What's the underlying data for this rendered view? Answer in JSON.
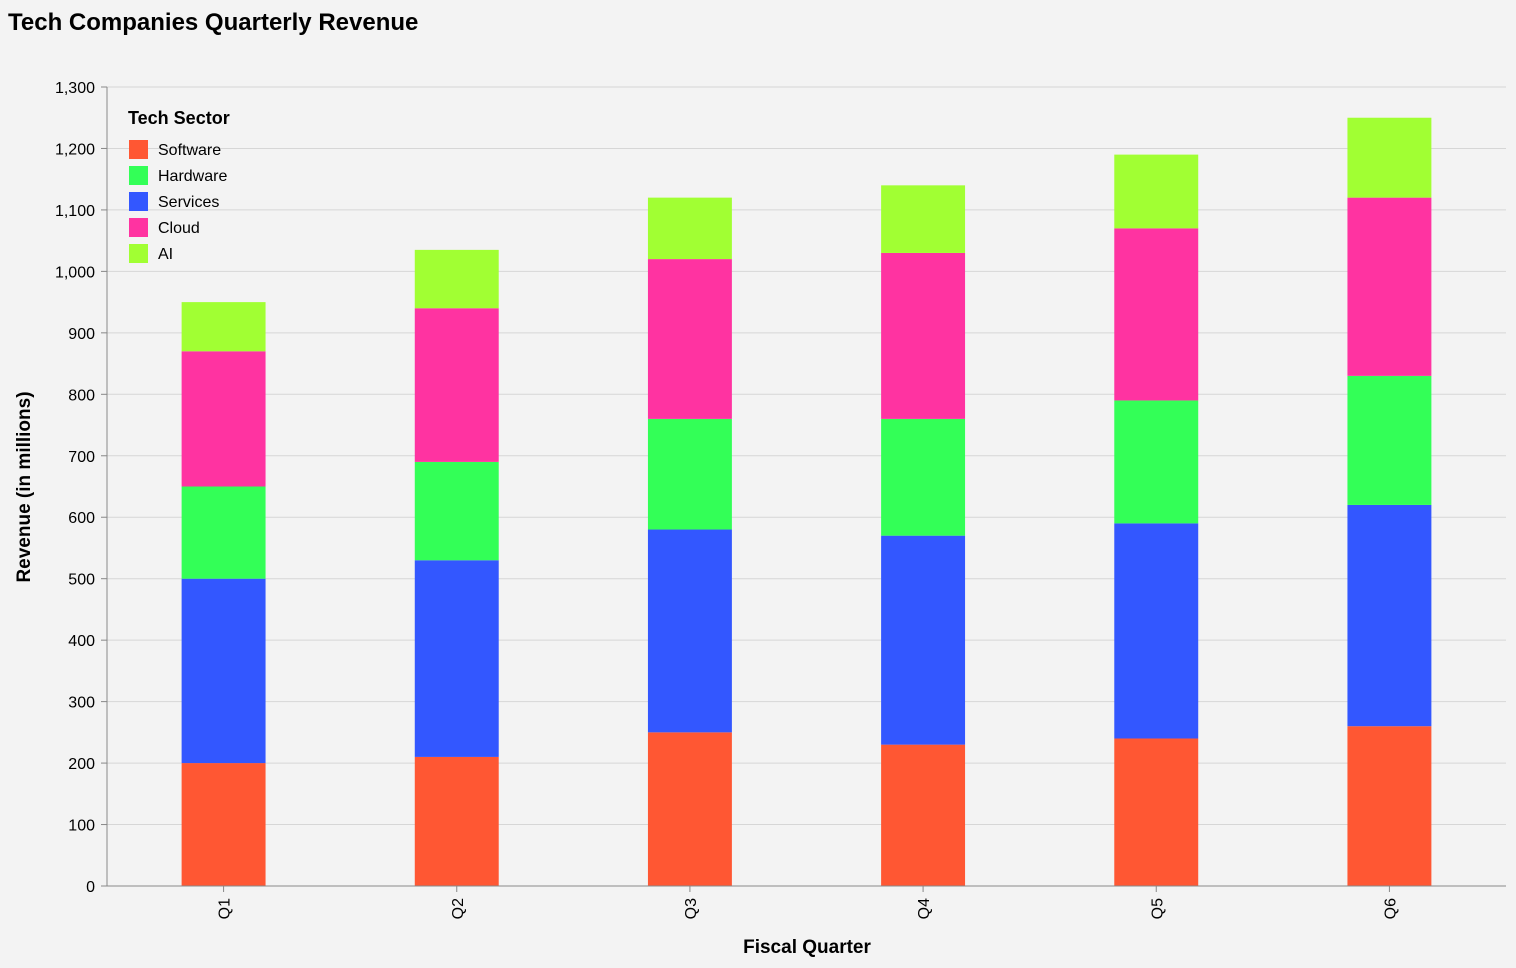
{
  "chart_data": {
    "type": "bar",
    "stacked": true,
    "title": "Tech Companies Quarterly Revenue",
    "xlabel": "Fiscal Quarter",
    "ylabel": "Revenue (in millions)",
    "ylim": [
      0,
      1300
    ],
    "yticks": [
      0,
      100,
      200,
      300,
      400,
      500,
      600,
      700,
      800,
      900,
      1000,
      1100,
      1200,
      1300
    ],
    "ytick_labels": [
      "0",
      "100",
      "200",
      "300",
      "400",
      "500",
      "600",
      "700",
      "800",
      "900",
      "1,000",
      "1,100",
      "1,200",
      "1,300"
    ],
    "grid": true,
    "categories": [
      "Q1",
      "Q2",
      "Q3",
      "Q4",
      "Q5",
      "Q6"
    ],
    "legend": {
      "title": "Tech Sector",
      "position": "top-left"
    },
    "series": [
      {
        "name": "Software",
        "color": "#ff5733",
        "values": [
          200,
          210,
          250,
          230,
          240,
          260
        ]
      },
      {
        "name": "Hardware",
        "color": "#33ff57",
        "values": [
          150,
          160,
          180,
          190,
          200,
          210
        ]
      },
      {
        "name": "Services",
        "color": "#3357ff",
        "values": [
          300,
          320,
          330,
          340,
          350,
          360
        ]
      },
      {
        "name": "Cloud",
        "color": "#ff33a1",
        "values": [
          220,
          250,
          260,
          270,
          280,
          290
        ]
      },
      {
        "name": "AI",
        "color": "#a1ff33",
        "values": [
          80,
          95,
          100,
          110,
          120,
          130
        ]
      }
    ],
    "stack_order": [
      "Software",
      "Services",
      "Hardware",
      "Cloud",
      "AI"
    ]
  }
}
